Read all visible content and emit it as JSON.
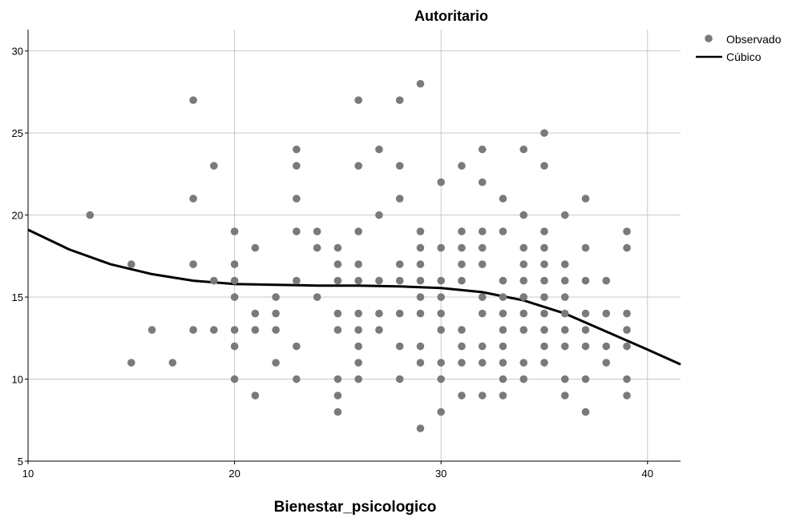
{
  "chart_data": {
    "type": "scatter",
    "title": "Autoritario",
    "xlabel": "Bienestar_psicologico",
    "ylabel": "",
    "xlim": [
      10,
      41.6
    ],
    "ylim": [
      5,
      31.3
    ],
    "xticks": [
      10,
      20,
      30,
      40
    ],
    "yticks": [
      5,
      10,
      15,
      20,
      25,
      30
    ],
    "grid": true,
    "legend_position": "top-right",
    "series": [
      {
        "name": "Observado",
        "kind": "points",
        "color": "#7a7a7a",
        "points": [
          [
            13,
            20
          ],
          [
            15,
            17
          ],
          [
            15,
            11
          ],
          [
            16,
            13
          ],
          [
            17,
            11
          ],
          [
            18,
            27
          ],
          [
            18,
            21
          ],
          [
            18,
            17
          ],
          [
            18,
            13
          ],
          [
            19,
            23
          ],
          [
            19,
            16
          ],
          [
            19,
            13
          ],
          [
            20,
            19
          ],
          [
            20,
            17
          ],
          [
            20,
            16
          ],
          [
            20,
            15
          ],
          [
            20,
            13
          ],
          [
            20,
            12
          ],
          [
            20,
            10
          ],
          [
            21,
            18
          ],
          [
            21,
            14
          ],
          [
            21,
            13
          ],
          [
            21,
            9
          ],
          [
            22,
            15
          ],
          [
            22,
            14
          ],
          [
            22,
            13
          ],
          [
            22,
            11
          ],
          [
            23,
            24
          ],
          [
            23,
            23
          ],
          [
            23,
            21
          ],
          [
            23,
            19
          ],
          [
            23,
            16
          ],
          [
            23,
            12
          ],
          [
            23,
            10
          ],
          [
            24,
            19
          ],
          [
            24,
            18
          ],
          [
            24,
            15
          ],
          [
            25,
            18
          ],
          [
            25,
            17
          ],
          [
            25,
            16
          ],
          [
            25,
            14
          ],
          [
            25,
            13
          ],
          [
            25,
            10
          ],
          [
            25,
            9
          ],
          [
            25,
            8
          ],
          [
            26,
            27
          ],
          [
            26,
            23
          ],
          [
            26,
            19
          ],
          [
            26,
            17
          ],
          [
            26,
            16
          ],
          [
            26,
            14
          ],
          [
            26,
            13
          ],
          [
            26,
            12
          ],
          [
            26,
            11
          ],
          [
            26,
            10
          ],
          [
            27,
            24
          ],
          [
            27,
            20
          ],
          [
            27,
            16
          ],
          [
            27,
            14
          ],
          [
            27,
            13
          ],
          [
            28,
            27
          ],
          [
            28,
            23
          ],
          [
            28,
            21
          ],
          [
            28,
            17
          ],
          [
            28,
            16
          ],
          [
            28,
            14
          ],
          [
            28,
            12
          ],
          [
            28,
            10
          ],
          [
            29,
            28
          ],
          [
            29,
            19
          ],
          [
            29,
            18
          ],
          [
            29,
            17
          ],
          [
            29,
            16
          ],
          [
            29,
            15
          ],
          [
            29,
            14
          ],
          [
            29,
            12
          ],
          [
            29,
            11
          ],
          [
            29,
            7
          ],
          [
            30,
            22
          ],
          [
            30,
            18
          ],
          [
            30,
            16
          ],
          [
            30,
            15
          ],
          [
            30,
            14
          ],
          [
            30,
            13
          ],
          [
            30,
            11
          ],
          [
            30,
            10
          ],
          [
            30,
            8
          ],
          [
            31,
            23
          ],
          [
            31,
            19
          ],
          [
            31,
            18
          ],
          [
            31,
            17
          ],
          [
            31,
            16
          ],
          [
            31,
            13
          ],
          [
            31,
            12
          ],
          [
            31,
            11
          ],
          [
            31,
            9
          ],
          [
            32,
            24
          ],
          [
            32,
            22
          ],
          [
            32,
            19
          ],
          [
            32,
            18
          ],
          [
            32,
            17
          ],
          [
            32,
            15
          ],
          [
            32,
            14
          ],
          [
            32,
            12
          ],
          [
            32,
            11
          ],
          [
            32,
            9
          ],
          [
            33,
            21
          ],
          [
            33,
            19
          ],
          [
            33,
            16
          ],
          [
            33,
            15
          ],
          [
            33,
            14
          ],
          [
            33,
            13
          ],
          [
            33,
            12
          ],
          [
            33,
            11
          ],
          [
            33,
            10
          ],
          [
            33,
            9
          ],
          [
            34,
            24
          ],
          [
            34,
            20
          ],
          [
            34,
            18
          ],
          [
            34,
            17
          ],
          [
            34,
            16
          ],
          [
            34,
            15
          ],
          [
            34,
            14
          ],
          [
            34,
            13
          ],
          [
            34,
            11
          ],
          [
            34,
            10
          ],
          [
            35,
            25
          ],
          [
            35,
            23
          ],
          [
            35,
            19
          ],
          [
            35,
            18
          ],
          [
            35,
            17
          ],
          [
            35,
            16
          ],
          [
            35,
            15
          ],
          [
            35,
            14
          ],
          [
            35,
            13
          ],
          [
            35,
            12
          ],
          [
            35,
            11
          ],
          [
            36,
            20
          ],
          [
            36,
            17
          ],
          [
            36,
            16
          ],
          [
            36,
            15
          ],
          [
            36,
            14
          ],
          [
            36,
            13
          ],
          [
            36,
            12
          ],
          [
            36,
            10
          ],
          [
            36,
            9
          ],
          [
            37,
            21
          ],
          [
            37,
            18
          ],
          [
            37,
            16
          ],
          [
            37,
            14
          ],
          [
            37,
            13
          ],
          [
            37,
            12
          ],
          [
            37,
            10
          ],
          [
            37,
            8
          ],
          [
            38,
            16
          ],
          [
            38,
            14
          ],
          [
            38,
            12
          ],
          [
            38,
            11
          ],
          [
            39,
            19
          ],
          [
            39,
            18
          ],
          [
            39,
            14
          ],
          [
            39,
            13
          ],
          [
            39,
            12
          ],
          [
            39,
            10
          ],
          [
            39,
            9
          ]
        ]
      },
      {
        "name": "Cúbico",
        "kind": "line",
        "color": "#000000",
        "points": [
          [
            10,
            19.1
          ],
          [
            12,
            17.9
          ],
          [
            14,
            17.0
          ],
          [
            16,
            16.4
          ],
          [
            18,
            16.0
          ],
          [
            20,
            15.8
          ],
          [
            22,
            15.75
          ],
          [
            24,
            15.7
          ],
          [
            26,
            15.7
          ],
          [
            28,
            15.65
          ],
          [
            30,
            15.55
          ],
          [
            32,
            15.3
          ],
          [
            34,
            14.8
          ],
          [
            36,
            14.0
          ],
          [
            38,
            12.9
          ],
          [
            40,
            11.8
          ],
          [
            41.6,
            10.9
          ]
        ]
      }
    ]
  }
}
